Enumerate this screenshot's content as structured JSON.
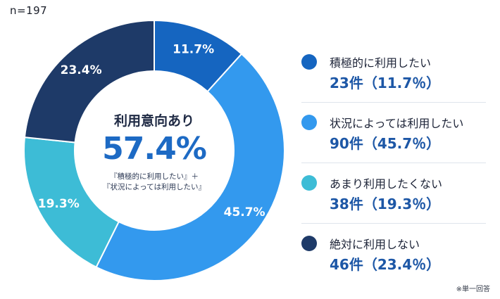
{
  "sample_size": "n=197",
  "center": {
    "title": "利用意向あり",
    "value": "57.4%",
    "note_line1": "『積極的に利用したい』＋",
    "note_line2": "『状況によっては利用したい』"
  },
  "footnote": "※単一回答",
  "colors": {
    "slice1": "#1565c0",
    "slice2": "#3399ee",
    "slice3": "#3dbcd6",
    "slice4": "#1e3a68"
  },
  "chart_data": {
    "type": "pie",
    "categories": [
      "積極的に利用したい",
      "状況によっては利用したい",
      "あまり利用したくない",
      "絶対に利用しない"
    ],
    "values": [
      11.7,
      45.7,
      19.3,
      23.4
    ],
    "counts": [
      23,
      90,
      38,
      46
    ],
    "slice_labels": [
      "11.7%",
      "45.7%",
      "19.3%",
      "23.4%"
    ],
    "colors": [
      "#1565c0",
      "#3399ee",
      "#3dbcd6",
      "#1e3a68"
    ],
    "legend_counts": [
      "23件（11.7％）",
      "90件（45.7％）",
      "38件（19.3％）",
      "46件（23.4％）"
    ],
    "legend": "right"
  }
}
